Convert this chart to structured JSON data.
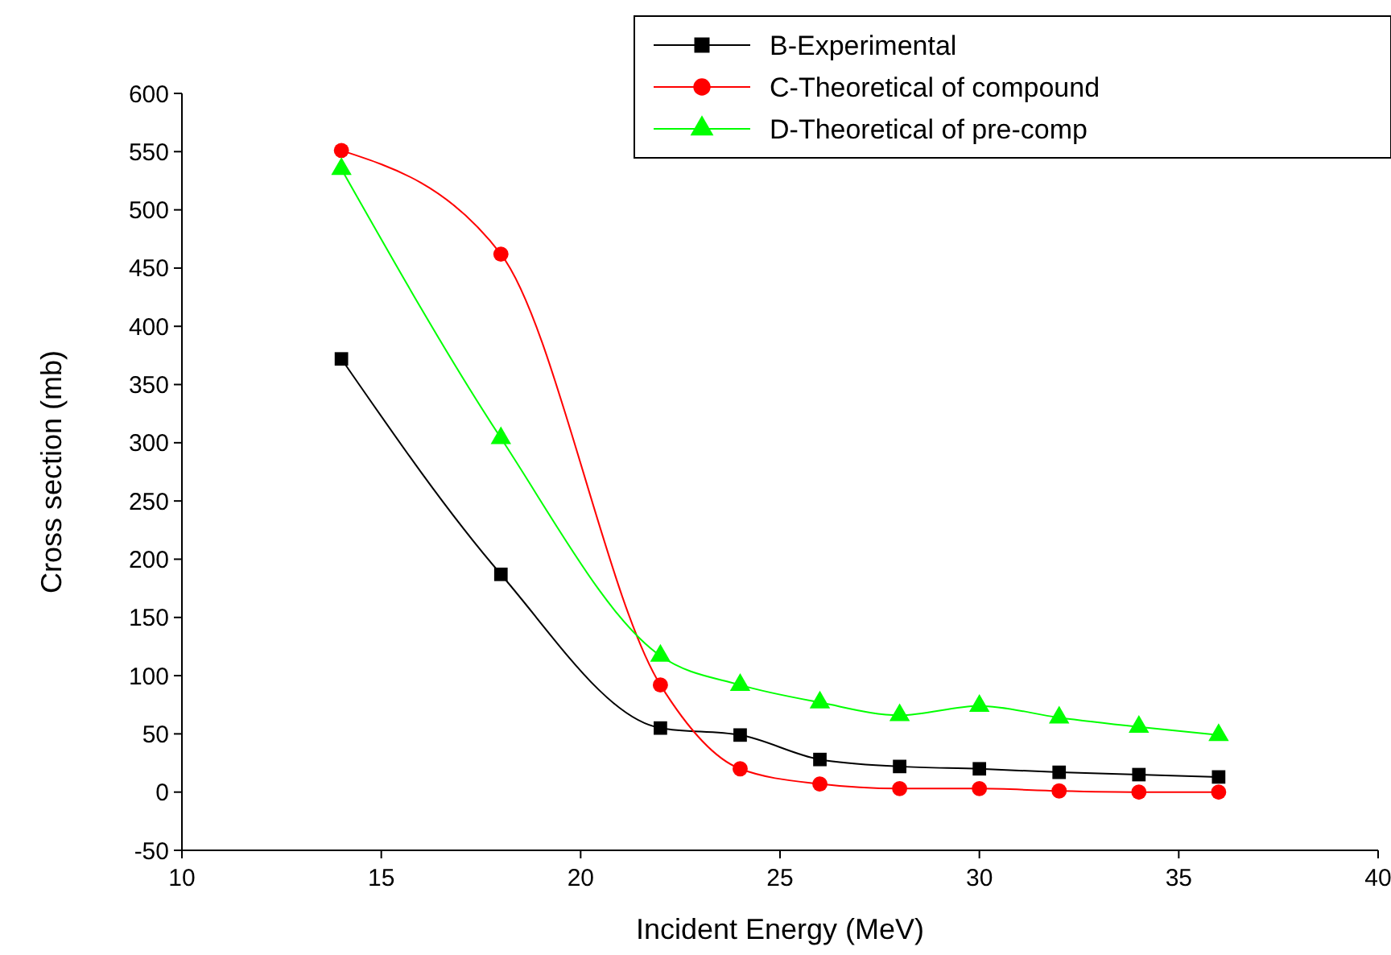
{
  "chart_data": {
    "type": "line",
    "xlabel": "Incident Energy (MeV)",
    "ylabel": "Cross section (mb)",
    "x": [
      14,
      18,
      22,
      24,
      26,
      28,
      30,
      32,
      34,
      36
    ],
    "series": [
      {
        "name": "B-Experimental",
        "color": "#000000",
        "marker": "square",
        "values": [
          372,
          187,
          55,
          49,
          28,
          22,
          20,
          17,
          15,
          13
        ]
      },
      {
        "name": "C-Theoretical of compound",
        "color": "#ff0000",
        "marker": "circle",
        "values": [
          551,
          462,
          92,
          20,
          7,
          3,
          3,
          1,
          0,
          0
        ]
      },
      {
        "name": "D-Theoretical of pre-comp",
        "color": "#00ff00",
        "marker": "triangle",
        "values": [
          535,
          304,
          117,
          92,
          77,
          66,
          74,
          64,
          56,
          49
        ]
      }
    ],
    "xlim": [
      10,
      40
    ],
    "xticks": [
      10,
      15,
      20,
      25,
      30,
      35,
      40
    ],
    "ylim": [
      -50,
      600
    ],
    "yticks": [
      -50,
      0,
      50,
      100,
      150,
      200,
      250,
      300,
      350,
      400,
      450,
      500,
      550,
      600
    ],
    "grid": false,
    "legend": "top right",
    "line_style": "solid"
  }
}
